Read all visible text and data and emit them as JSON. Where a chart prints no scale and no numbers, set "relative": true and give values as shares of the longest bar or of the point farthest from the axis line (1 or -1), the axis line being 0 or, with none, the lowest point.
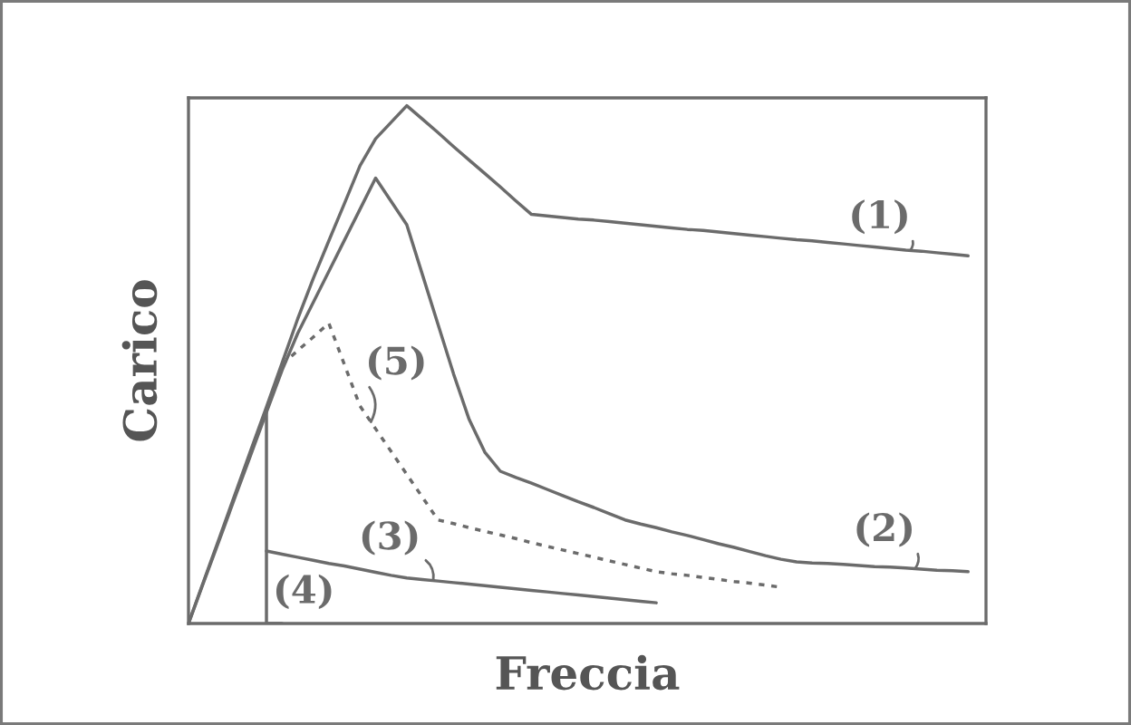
{
  "chart_data": {
    "type": "line",
    "relative": true,
    "xlabel": "Freccia",
    "ylabel": "Carico",
    "categories": [
      null,
      null,
      null,
      null,
      null,
      null,
      null,
      null,
      null,
      null,
      null,
      null,
      null,
      null,
      null,
      null,
      null,
      null,
      null,
      null,
      null,
      null,
      null,
      null,
      null,
      null,
      null,
      null,
      null,
      null,
      null,
      null,
      null,
      null,
      null,
      null,
      null,
      null,
      null,
      null,
      null,
      null,
      null,
      null,
      null,
      null,
      null,
      null,
      null,
      null,
      null
    ],
    "series": [
      {
        "name": "(1)",
        "color": "#6b6b6b",
        "values": [
          0,
          0.084,
          0.167,
          0.251,
          0.335,
          0.418,
          0.503,
          0.588,
          0.666,
          0.739,
          0.811,
          0.884,
          0.936,
          0.968,
          1,
          0.974,
          0.948,
          0.921,
          0.895,
          0.869,
          0.843,
          0.816,
          0.79,
          0.787,
          0.784,
          0.781,
          0.779,
          0.776,
          0.773,
          0.77,
          0.767,
          0.764,
          0.761,
          0.759,
          0.756,
          0.753,
          0.75,
          0.747,
          0.744,
          0.741,
          0.739,
          0.736,
          0.733,
          0.73,
          0.727,
          0.724,
          0.721,
          0.719,
          0.716,
          0.713,
          0.71
        ]
      },
      {
        "name": "(2)",
        "color": "#6b6b6b",
        "values": [
          0,
          0.082,
          0.163,
          0.245,
          0.326,
          0.408,
          0.489,
          0.56,
          0.62,
          0.68,
          0.74,
          0.8,
          0.86,
          0.815,
          0.77,
          0.674,
          0.578,
          0.482,
          0.394,
          0.331,
          0.294,
          0.282,
          0.271,
          0.259,
          0.247,
          0.235,
          0.224,
          0.212,
          0.2,
          0.192,
          0.185,
          0.177,
          0.17,
          0.162,
          0.154,
          0.147,
          0.139,
          0.131,
          0.124,
          0.119,
          0.117,
          0.116,
          0.114,
          0.112,
          0.11,
          0.109,
          0.107,
          0.105,
          0.103,
          0.102,
          0.1
        ]
      },
      {
        "name": "(3)",
        "color": "#6b6b6b",
        "values": [
          null,
          null,
          null,
          null,
          null,
          0.14,
          0.134,
          0.128,
          0.122,
          0.116,
          0.111,
          0.105,
          0.099,
          0.093,
          0.088,
          0.085,
          0.082,
          0.079,
          0.076,
          0.073,
          0.07,
          0.067,
          0.064,
          0.061,
          0.058,
          0.055,
          0.052,
          0.049,
          0.046,
          0.043,
          0.04,
          null,
          null,
          null,
          null,
          null,
          null,
          null,
          null,
          null,
          null,
          null,
          null,
          null,
          null,
          null,
          null,
          null,
          null,
          null,
          null
        ]
      },
      {
        "name": "(4)",
        "type": "step",
        "color": "#6b6b6b",
        "values": [
          null,
          null,
          null,
          null,
          null,
          0.41,
          0,
          null,
          null,
          null,
          null,
          null,
          null,
          null,
          null,
          null,
          null,
          null,
          null,
          null,
          null,
          null,
          null,
          null,
          null,
          null,
          null,
          null,
          null,
          null,
          null,
          null,
          null,
          null,
          null,
          null,
          null,
          null,
          null,
          null,
          null,
          null,
          null,
          null,
          null,
          null,
          null,
          null,
          null,
          null,
          null
        ]
      },
      {
        "name": "(5)",
        "color": "#6b6b6b",
        "line_style": "dotted",
        "values": [
          null,
          null,
          null,
          null,
          null,
          null,
          0.5,
          0.527,
          0.553,
          0.58,
          0.5,
          0.42,
          0.376,
          0.332,
          0.288,
          0.244,
          0.2,
          0.193,
          0.185,
          0.178,
          0.171,
          0.164,
          0.156,
          0.149,
          0.142,
          0.135,
          0.128,
          0.121,
          0.114,
          0.107,
          0.1,
          0.096,
          0.093,
          0.089,
          0.085,
          0.081,
          0.078,
          0.074,
          0.07,
          null,
          null,
          null,
          null,
          null,
          null,
          null,
          null,
          null,
          null,
          null,
          null
        ]
      }
    ]
  }
}
